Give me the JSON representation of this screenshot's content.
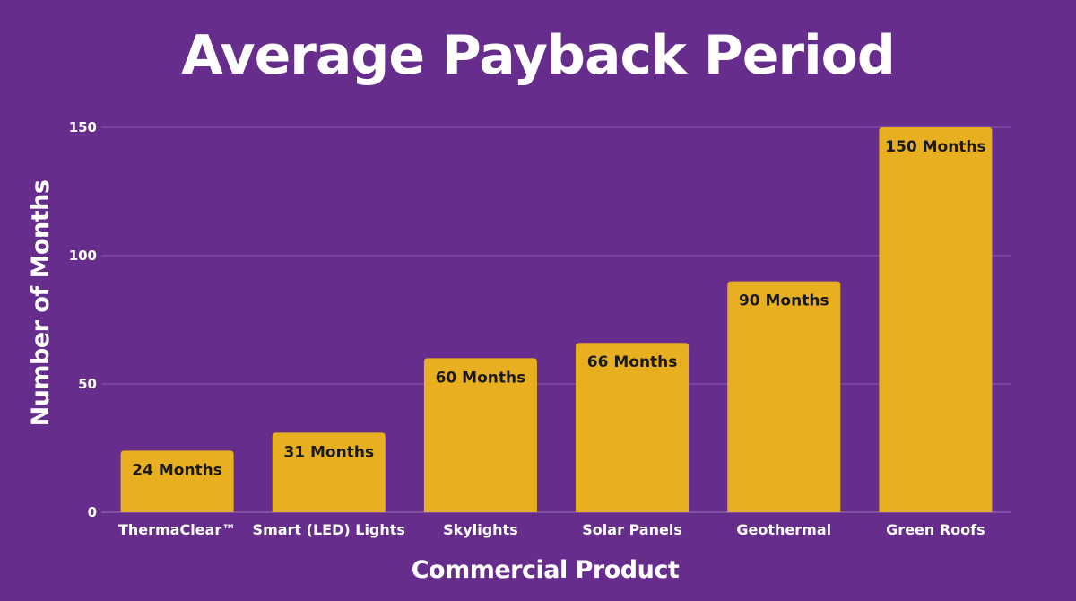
{
  "chart_data": {
    "type": "bar",
    "title": "Average Payback Period",
    "xlabel": "Commercial Product",
    "ylabel": "Number of Months",
    "categories": [
      "ThermaClear™",
      "Smart (LED) Lights",
      "Skylights",
      "Solar Panels",
      "Geothermal",
      "Green Roofs"
    ],
    "values": [
      24,
      31,
      60,
      66,
      90,
      150
    ],
    "data_labels": [
      "24 Months",
      "31 Months",
      "60 Months",
      "66 Months",
      "90 Months",
      "150 Months"
    ],
    "ylim": [
      0,
      150
    ],
    "yticks": [
      0,
      50,
      100,
      150
    ],
    "ytick_labels": [
      "0",
      "50",
      "100",
      "150"
    ],
    "grid": true,
    "legend": "none"
  },
  "colors": {
    "background": "#662d8c",
    "bar": "#e8af21",
    "bar_label": "#1a1a1a",
    "text": "#ffffff",
    "gridline": "#8a5bb0"
  }
}
